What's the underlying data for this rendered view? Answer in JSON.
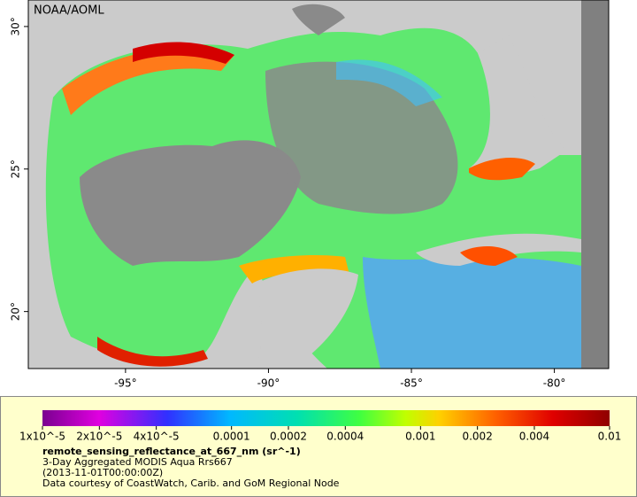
{
  "map": {
    "credit": "NOAA/AOML",
    "xlim": [
      -98.4,
      -78.1
    ],
    "ylim": [
      18.0,
      30.93
    ],
    "xticks": [
      {
        "value": -95,
        "label": "-95°"
      },
      {
        "value": -90,
        "label": "-90°"
      },
      {
        "value": -85,
        "label": "-85°"
      },
      {
        "value": -80,
        "label": "-80°"
      }
    ],
    "yticks": [
      {
        "value": 20,
        "label": "20°"
      },
      {
        "value": 25,
        "label": "25°"
      },
      {
        "value": 30,
        "label": "30°"
      }
    ]
  },
  "legend": {
    "scale": "log",
    "range": [
      1e-05,
      0.01
    ],
    "ticks": [
      {
        "value": 1e-05,
        "label": "1x10^-5"
      },
      {
        "value": 2e-05,
        "label": "2x10^-5"
      },
      {
        "value": 4e-05,
        "label": "4x10^-5"
      },
      0.0001,
      0.0002,
      0.0004,
      0.001,
      0.002,
      0.004,
      0.01
    ],
    "variable": "remote_sensing_reflectance_at_667_nm (sr^-1)",
    "lines": [
      "3-Day Aggregated MODIS Aqua Rrs667",
      "(2013-11-01T00:00:00Z)",
      "Data courtesy of CoastWatch, Carib. and GoM Regional Node"
    ]
  }
}
